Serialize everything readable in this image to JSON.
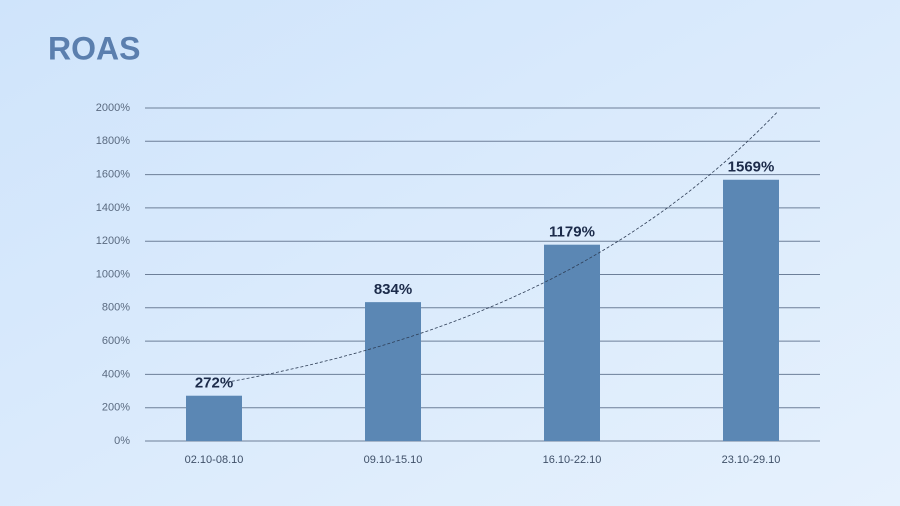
{
  "chart_data": {
    "type": "bar",
    "title": "ROAS",
    "categories": [
      "02.10-08.10",
      "09.10-15.10",
      "16.10-22.10",
      "23.10-29.10"
    ],
    "values": [
      272,
      834,
      1179,
      1569
    ],
    "value_labels": [
      "272%",
      "834%",
      "1179%",
      "1569%"
    ],
    "color": "#5b87b4",
    "ylim": [
      0,
      2000
    ],
    "yticks": [
      {
        "value": 0,
        "label": "0%"
      },
      {
        "value": 200,
        "label": "200%"
      },
      {
        "value": 400,
        "label": "400%"
      },
      {
        "value": 600,
        "label": "600%"
      },
      {
        "value": 800,
        "label": "800%"
      },
      {
        "value": 1000,
        "label": "1000%"
      },
      {
        "value": 1200,
        "label": "1200%"
      },
      {
        "value": 1400,
        "label": "1400%"
      },
      {
        "value": 1600,
        "label": "1600%"
      },
      {
        "value": 1800,
        "label": "1800%"
      },
      {
        "value": 2000,
        "label": "2000%"
      }
    ],
    "grid": true,
    "trendline": "exponential"
  }
}
